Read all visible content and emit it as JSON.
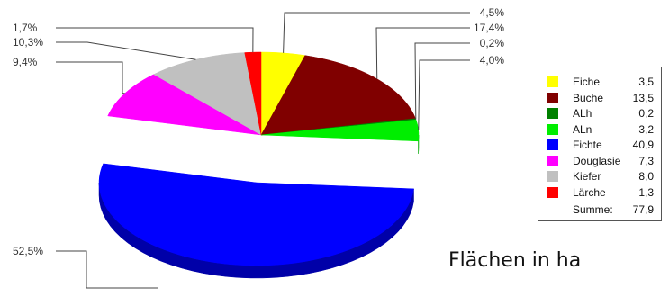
{
  "chart_data": {
    "type": "pie",
    "title": "Flächen in ha",
    "unit": "ha",
    "slices": [
      {
        "name": "Eiche",
        "value": 3.5,
        "value_label": "3,5",
        "percent_label": "4,5%",
        "color": "#ffff00",
        "side": "#b5b500"
      },
      {
        "name": "Buche",
        "value": 13.5,
        "value_label": "13,5",
        "percent_label": "17,4%",
        "color": "#800000",
        "side": "#560000"
      },
      {
        "name": "ALh",
        "value": 0.2,
        "value_label": "0,2",
        "percent_label": "0,2%",
        "color": "#008000",
        "side": "#005a00"
      },
      {
        "name": "ALn",
        "value": 3.2,
        "value_label": "3,2",
        "percent_label": "4,0%",
        "color": "#00ee00",
        "side": "#00a800"
      },
      {
        "name": "Fichte",
        "value": 40.9,
        "value_label": "40,9",
        "percent_label": "52,5%",
        "color": "#0000ff",
        "side": "#0000a8"
      },
      {
        "name": "Douglasie",
        "value": 7.3,
        "value_label": "7,3",
        "percent_label": "9,4%",
        "color": "#ff00ff",
        "side": "#b000b0"
      },
      {
        "name": "Kiefer",
        "value": 8.0,
        "value_label": "8,0",
        "percent_label": "10,3%",
        "color": "#c0c0c0",
        "side": "#8a8a8a"
      },
      {
        "name": "Lärche",
        "value": 1.3,
        "value_label": "1,3",
        "percent_label": "1,7%",
        "color": "#ff0000",
        "side": "#b00000"
      }
    ],
    "total_label": "Summe:",
    "total_value": "77,9",
    "legend_position": "right",
    "exploded_slice": "Fichte",
    "style": "3d-pie"
  }
}
